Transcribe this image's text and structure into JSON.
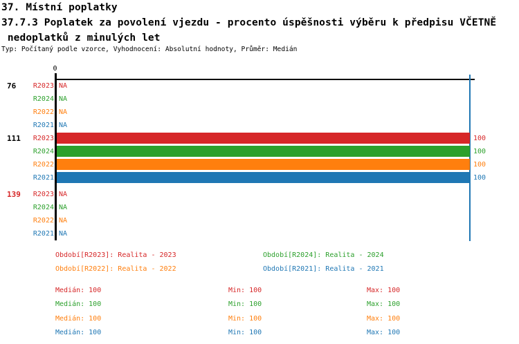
{
  "header": {
    "title_line1": "37. Místní poplatky",
    "title_line2": "37.7.3 Poplatek za povolení vjezdu - procento úspěšnosti výběru k předpisu VČETNĚ",
    "title_line3": " nedoplatků z minulých let",
    "meta": "Typ: Počítaný podle vzorce, Vyhodnocení: Absolutní hodnoty, Průměr: Medián"
  },
  "colors": {
    "r2023": "#d62728",
    "r2024": "#2ca02c",
    "r2022": "#ff7f0e",
    "r2021": "#1f77b4",
    "axis": "#000000"
  },
  "chart_data": {
    "type": "bar",
    "orientation": "horizontal",
    "x_axis": {
      "position": "top",
      "tick_labels": [
        "0"
      ],
      "range": [
        0,
        100
      ]
    },
    "na_display": "NA",
    "median_line": {
      "value": 100,
      "color": "#1f77b4"
    },
    "categories": [
      "76",
      "111",
      "139"
    ],
    "series": [
      {
        "name": "R2023",
        "color": "#d62728",
        "values": [
          null,
          100,
          null
        ]
      },
      {
        "name": "R2024",
        "color": "#2ca02c",
        "values": [
          null,
          100,
          null
        ]
      },
      {
        "name": "R2022",
        "color": "#ff7f0e",
        "values": [
          null,
          100,
          null
        ]
      },
      {
        "name": "R2021",
        "color": "#1f77b4",
        "values": [
          null,
          100,
          null
        ]
      }
    ],
    "groups": [
      {
        "label": "76",
        "label_color": "#000000",
        "rows": [
          {
            "series": "R2023",
            "color": "#d62728",
            "value": null
          },
          {
            "series": "R2024",
            "color": "#2ca02c",
            "value": null
          },
          {
            "series": "R2022",
            "color": "#ff7f0e",
            "value": null
          },
          {
            "series": "R2021",
            "color": "#1f77b4",
            "value": null
          }
        ]
      },
      {
        "label": "111",
        "label_color": "#000000",
        "rows": [
          {
            "series": "R2023",
            "color": "#d62728",
            "value": 100
          },
          {
            "series": "R2024",
            "color": "#2ca02c",
            "value": 100
          },
          {
            "series": "R2022",
            "color": "#ff7f0e",
            "value": 100
          },
          {
            "series": "R2021",
            "color": "#1f77b4",
            "value": 100
          }
        ]
      },
      {
        "label": "139",
        "label_color": "#d62728",
        "rows": [
          {
            "series": "R2023",
            "color": "#d62728",
            "value": null
          },
          {
            "series": "R2024",
            "color": "#2ca02c",
            "value": null
          },
          {
            "series": "R2022",
            "color": "#ff7f0e",
            "value": null
          },
          {
            "series": "R2021",
            "color": "#1f77b4",
            "value": null
          }
        ]
      }
    ]
  },
  "legend": {
    "items": [
      {
        "text": "Období[R2023]: Realita - 2023",
        "color": "#d62728"
      },
      {
        "text": "Období[R2024]: Realita - 2024",
        "color": "#2ca02c"
      },
      {
        "text": "Období[R2022]: Realita - 2022",
        "color": "#ff7f0e"
      },
      {
        "text": "Období[R2021]: Realita - 2021",
        "color": "#1f77b4"
      }
    ]
  },
  "stats": {
    "rows": [
      {
        "series": "R2023",
        "color": "#d62728",
        "median": "Medián: 100",
        "min": "Min: 100",
        "max": "Max: 100"
      },
      {
        "series": "R2024",
        "color": "#2ca02c",
        "median": "Medián: 100",
        "min": "Min: 100",
        "max": "Max: 100"
      },
      {
        "series": "R2022",
        "color": "#ff7f0e",
        "median": "Medián: 100",
        "min": "Min: 100",
        "max": "Max: 100"
      },
      {
        "series": "R2021",
        "color": "#1f77b4",
        "median": "Medián: 100",
        "min": "Min: 100",
        "max": "Max: 100"
      }
    ]
  }
}
